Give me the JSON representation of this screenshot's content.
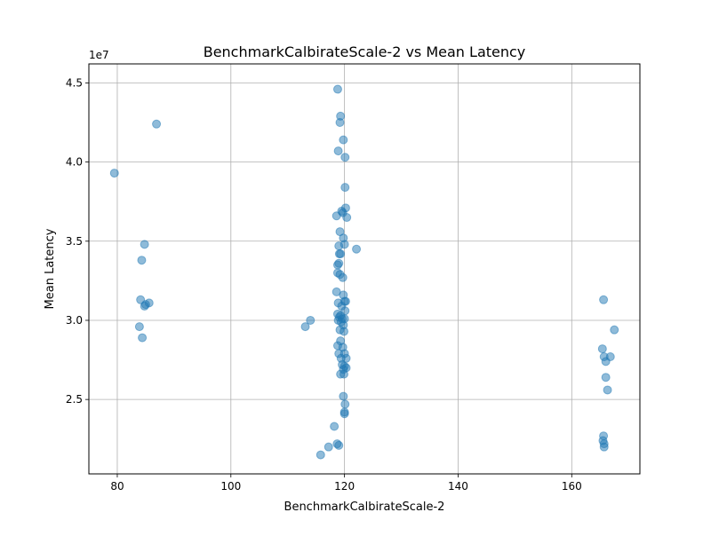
{
  "chart_data": {
    "type": "scatter",
    "title": "BenchmarkCalbirateScale-2 vs Mean Latency",
    "xlabel": "BenchmarkCalbirateScale-2",
    "ylabel": "Mean Latency",
    "y_offset_label": "1e7",
    "xlim": [
      75,
      172
    ],
    "ylim": [
      2.03,
      4.62
    ],
    "y_scale_factor": 10000000,
    "x_ticks": [
      80,
      100,
      120,
      140,
      160
    ],
    "y_ticks": [
      2.5,
      3.0,
      3.5,
      4.0,
      4.5
    ],
    "x_tick_labels": [
      "80",
      "100",
      "120",
      "140",
      "160"
    ],
    "y_tick_labels": [
      "2.5",
      "3.0",
      "3.5",
      "4.0",
      "4.5"
    ],
    "grid": true,
    "marker_color": "#1f77b4",
    "marker_alpha": 0.5,
    "points": [
      [
        79.5,
        3.93
      ],
      [
        86.9,
        4.24
      ],
      [
        84.8,
        3.48
      ],
      [
        84.3,
        3.38
      ],
      [
        84.1,
        3.13
      ],
      [
        85.6,
        3.11
      ],
      [
        84.8,
        3.09
      ],
      [
        85.0,
        3.1
      ],
      [
        83.9,
        2.96
      ],
      [
        84.4,
        2.89
      ],
      [
        113.1,
        2.96
      ],
      [
        114.0,
        3.0
      ],
      [
        115.8,
        2.15
      ],
      [
        117.2,
        2.2
      ],
      [
        118.2,
        2.33
      ],
      [
        118.7,
        2.22
      ],
      [
        119.0,
        2.21
      ],
      [
        118.8,
        4.46
      ],
      [
        119.3,
        4.29
      ],
      [
        119.2,
        4.25
      ],
      [
        119.8,
        4.14
      ],
      [
        118.9,
        4.07
      ],
      [
        120.1,
        4.03
      ],
      [
        120.1,
        3.84
      ],
      [
        120.2,
        3.71
      ],
      [
        119.5,
        3.69
      ],
      [
        118.6,
        3.66
      ],
      [
        119.7,
        3.68
      ],
      [
        120.4,
        3.65
      ],
      [
        119.2,
        3.56
      ],
      [
        119.8,
        3.52
      ],
      [
        119.0,
        3.47
      ],
      [
        120.0,
        3.48
      ],
      [
        122.1,
        3.45
      ],
      [
        119.3,
        3.42
      ],
      [
        119.1,
        3.42
      ],
      [
        118.8,
        3.35
      ],
      [
        119.0,
        3.36
      ],
      [
        118.8,
        3.3
      ],
      [
        119.2,
        3.29
      ],
      [
        119.7,
        3.27
      ],
      [
        118.6,
        3.18
      ],
      [
        119.8,
        3.16
      ],
      [
        118.9,
        3.11
      ],
      [
        120.0,
        3.12
      ],
      [
        120.2,
        3.12
      ],
      [
        119.5,
        3.09
      ],
      [
        120.1,
        3.06
      ],
      [
        118.8,
        3.04
      ],
      [
        119.3,
        3.03
      ],
      [
        119.1,
        3.02
      ],
      [
        119.6,
        3.01
      ],
      [
        118.9,
        3.0
      ],
      [
        120.0,
        3.01
      ],
      [
        119.4,
        2.99
      ],
      [
        119.8,
        2.97
      ],
      [
        119.2,
        2.94
      ],
      [
        119.9,
        2.93
      ],
      [
        119.3,
        2.87
      ],
      [
        118.8,
        2.84
      ],
      [
        119.7,
        2.83
      ],
      [
        119.0,
        2.79
      ],
      [
        120.0,
        2.79
      ],
      [
        119.4,
        2.76
      ],
      [
        120.3,
        2.76
      ],
      [
        119.6,
        2.72
      ],
      [
        120.0,
        2.71
      ],
      [
        120.3,
        2.7
      ],
      [
        119.8,
        2.69
      ],
      [
        119.3,
        2.66
      ],
      [
        119.9,
        2.66
      ],
      [
        119.8,
        2.52
      ],
      [
        120.1,
        2.47
      ],
      [
        120.0,
        2.42
      ],
      [
        120.0,
        2.41
      ],
      [
        165.6,
        3.13
      ],
      [
        167.5,
        2.94
      ],
      [
        165.4,
        2.82
      ],
      [
        165.7,
        2.77
      ],
      [
        166.8,
        2.77
      ],
      [
        166.0,
        2.74
      ],
      [
        166.0,
        2.64
      ],
      [
        166.3,
        2.56
      ],
      [
        165.6,
        2.27
      ],
      [
        165.5,
        2.24
      ],
      [
        165.7,
        2.22
      ],
      [
        165.7,
        2.2
      ]
    ]
  }
}
